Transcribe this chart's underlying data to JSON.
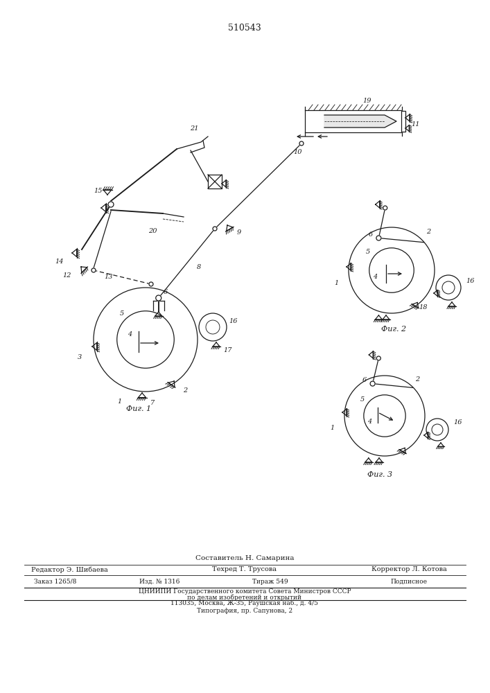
{
  "title": "510543",
  "bg_color": "#ffffff",
  "line_color": "#1a1a1a",
  "fig_labels": [
    "Фиг. 1",
    "Фиг. 2",
    "Фиг. 3"
  ],
  "footer": {
    "line1": "Составитель Н. Самарина",
    "line2_left": "Редактор Э. Шибаева",
    "line2_mid": "Техред Т. Трусова",
    "line2_right": "Корректор Л. Котова",
    "line3_1": "Заказ 1265/8",
    "line3_2": "Изд. № 1316",
    "line3_3": "Тираж 549",
    "line3_4": "Подписное",
    "line4": "ЦНИИПИ Государственного комитета Совета Министров СССР",
    "line5": "по делам изобретений и открытий",
    "line6": "113035, Москва, Ж-35, Раушская наб., д. 4/5",
    "line7": "Типография, пр. Сапунова, 2"
  }
}
